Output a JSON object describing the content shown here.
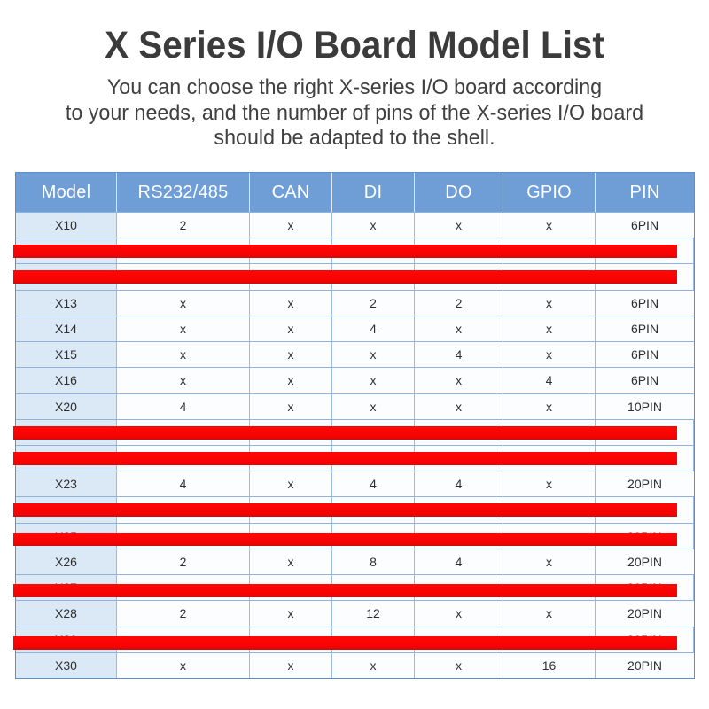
{
  "header": {
    "title": "X Series I/O Board Model List",
    "subtitle_lines": [
      "You can choose the right X-series I/O board according",
      "to your needs, and the number of pins of the X-series I/O board",
      "should be adapted to the shell."
    ]
  },
  "colors": {
    "table_header_bg": "#6f9ed7",
    "table_header_text": "#ffffff",
    "model_column_bg": "#dbe8f6",
    "data_cell_bg": "#fbfdff",
    "grid_line": "#8fb3dd",
    "redaction_bar": "#f70303",
    "title_text": "#3b3b3b"
  },
  "table": {
    "columns": [
      "Model",
      "RS232/485",
      "CAN",
      "DI",
      "DO",
      "GPIO",
      "PIN"
    ],
    "rows": [
      {
        "model": "X10",
        "cells": [
          "2",
          "x",
          "x",
          "x",
          "x",
          "6PIN"
        ],
        "redacted": false,
        "peek": false
      },
      {
        "model": "",
        "cells": [
          "",
          "",
          "",
          "",
          "",
          ""
        ],
        "redacted": true,
        "peek": false
      },
      {
        "model": "",
        "cells": [
          "",
          "",
          "",
          "",
          "",
          ""
        ],
        "redacted": true,
        "peek": false
      },
      {
        "model": "X13",
        "cells": [
          "x",
          "x",
          "2",
          "2",
          "x",
          "6PIN"
        ],
        "redacted": false,
        "peek": false
      },
      {
        "model": "X14",
        "cells": [
          "x",
          "x",
          "4",
          "x",
          "x",
          "6PIN"
        ],
        "redacted": false,
        "peek": false
      },
      {
        "model": "X15",
        "cells": [
          "x",
          "x",
          "x",
          "4",
          "x",
          "6PIN"
        ],
        "redacted": false,
        "peek": false
      },
      {
        "model": "X16",
        "cells": [
          "x",
          "x",
          "x",
          "x",
          "4",
          "6PIN"
        ],
        "redacted": false,
        "peek": false
      },
      {
        "model": "X20",
        "cells": [
          "4",
          "x",
          "x",
          "x",
          "x",
          "10PIN"
        ],
        "redacted": false,
        "peek": false
      },
      {
        "model": "",
        "cells": [
          "",
          "",
          "",
          "",
          "",
          ""
        ],
        "redacted": true,
        "peek": false
      },
      {
        "model": "",
        "cells": [
          "",
          "",
          "",
          "",
          "",
          ""
        ],
        "redacted": true,
        "peek": false
      },
      {
        "model": "X23",
        "cells": [
          "4",
          "x",
          "4",
          "4",
          "x",
          "20PIN"
        ],
        "redacted": false,
        "peek": false
      },
      {
        "model": "",
        "cells": [
          "",
          "",
          "",
          "",
          "",
          ""
        ],
        "redacted": true,
        "peek": false
      },
      {
        "model": "X25",
        "cells": [
          "",
          "",
          "",
          "",
          "",
          "20PIN"
        ],
        "redacted": true,
        "peek": true
      },
      {
        "model": "X26",
        "cells": [
          "2",
          "x",
          "8",
          "4",
          "x",
          "20PIN"
        ],
        "redacted": false,
        "peek": false
      },
      {
        "model": "X27",
        "cells": [
          "",
          "",
          "",
          "",
          "",
          "20PIN"
        ],
        "redacted": true,
        "peek": true
      },
      {
        "model": "X28",
        "cells": [
          "2",
          "x",
          "12",
          "x",
          "x",
          "20PIN"
        ],
        "redacted": false,
        "peek": false
      },
      {
        "model": "X29",
        "cells": [
          "",
          "",
          "",
          "",
          "",
          "20PIN"
        ],
        "redacted": true,
        "peek": true
      },
      {
        "model": "X30",
        "cells": [
          "x",
          "x",
          "x",
          "x",
          "16",
          "20PIN"
        ],
        "redacted": false,
        "peek": false
      }
    ]
  }
}
